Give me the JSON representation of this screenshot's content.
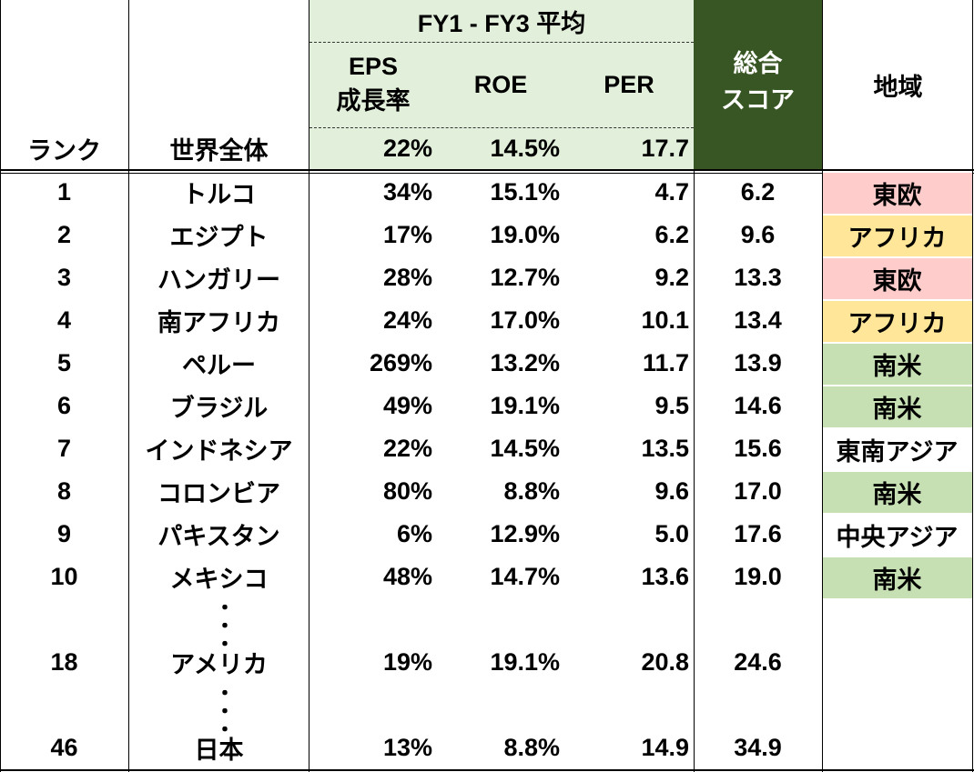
{
  "header": {
    "group_title": "FY1 - FY3 平均",
    "eps_line1": "EPS",
    "eps_line2": "成長率",
    "roe": "ROE",
    "per": "PER",
    "score_line1": "総合",
    "score_line2": "スコア",
    "region": "地域",
    "rank": "ランク",
    "world": "世界全体",
    "world_eps": "22%",
    "world_roe": "14.5%",
    "world_per": "17.7"
  },
  "rows": [
    {
      "rank": "1",
      "country": "トルコ",
      "eps": "34%",
      "roe": "15.1%",
      "per": "4.7",
      "score": "6.2",
      "region": "東欧",
      "region_color": "#ffcccc"
    },
    {
      "rank": "2",
      "country": "エジプト",
      "eps": "17%",
      "roe": "19.0%",
      "per": "6.2",
      "score": "9.6",
      "region": "アフリカ",
      "region_color": "#ffe699"
    },
    {
      "rank": "3",
      "country": "ハンガリー",
      "eps": "28%",
      "roe": "12.7%",
      "per": "9.2",
      "score": "13.3",
      "region": "東欧",
      "region_color": "#ffcccc"
    },
    {
      "rank": "4",
      "country": "南アフリカ",
      "eps": "24%",
      "roe": "17.0%",
      "per": "10.1",
      "score": "13.4",
      "region": "アフリカ",
      "region_color": "#ffe699"
    },
    {
      "rank": "5",
      "country": "ペルー",
      "eps": "269%",
      "roe": "13.2%",
      "per": "11.7",
      "score": "13.9",
      "region": "南米",
      "region_color": "#c6e0b4"
    },
    {
      "rank": "6",
      "country": "ブラジル",
      "eps": "49%",
      "roe": "19.1%",
      "per": "9.5",
      "score": "14.6",
      "region": "南米",
      "region_color": "#c6e0b4"
    },
    {
      "rank": "7",
      "country": "インドネシア",
      "eps": "22%",
      "roe": "14.5%",
      "per": "13.5",
      "score": "15.6",
      "region": "東南アジア",
      "region_color": "#ffffff"
    },
    {
      "rank": "8",
      "country": "コロンビア",
      "eps": "80%",
      "roe": "8.8%",
      "per": "9.6",
      "score": "17.0",
      "region": "南米",
      "region_color": "#c6e0b4"
    },
    {
      "rank": "9",
      "country": "パキスタン",
      "eps": "6%",
      "roe": "12.9%",
      "per": "5.0",
      "score": "17.6",
      "region": "中央アジア",
      "region_color": "#ffffff"
    },
    {
      "rank": "10",
      "country": "メキシコ",
      "eps": "48%",
      "roe": "14.7%",
      "per": "13.6",
      "score": "19.0",
      "region": "南米",
      "region_color": "#c6e0b4"
    },
    {
      "rank": "18",
      "country": "アメリカ",
      "eps": "19%",
      "roe": "19.1%",
      "per": "20.8",
      "score": "24.6",
      "region": "",
      "region_color": "#ffffff"
    },
    {
      "rank": "46",
      "country": "日本",
      "eps": "13%",
      "roe": "8.8%",
      "per": "14.9",
      "score": "34.9",
      "region": "",
      "region_color": "#ffffff"
    }
  ],
  "ellipsis": "・",
  "colors": {
    "header_light_green": "#e2efda",
    "score_dark_green": "#375623"
  }
}
